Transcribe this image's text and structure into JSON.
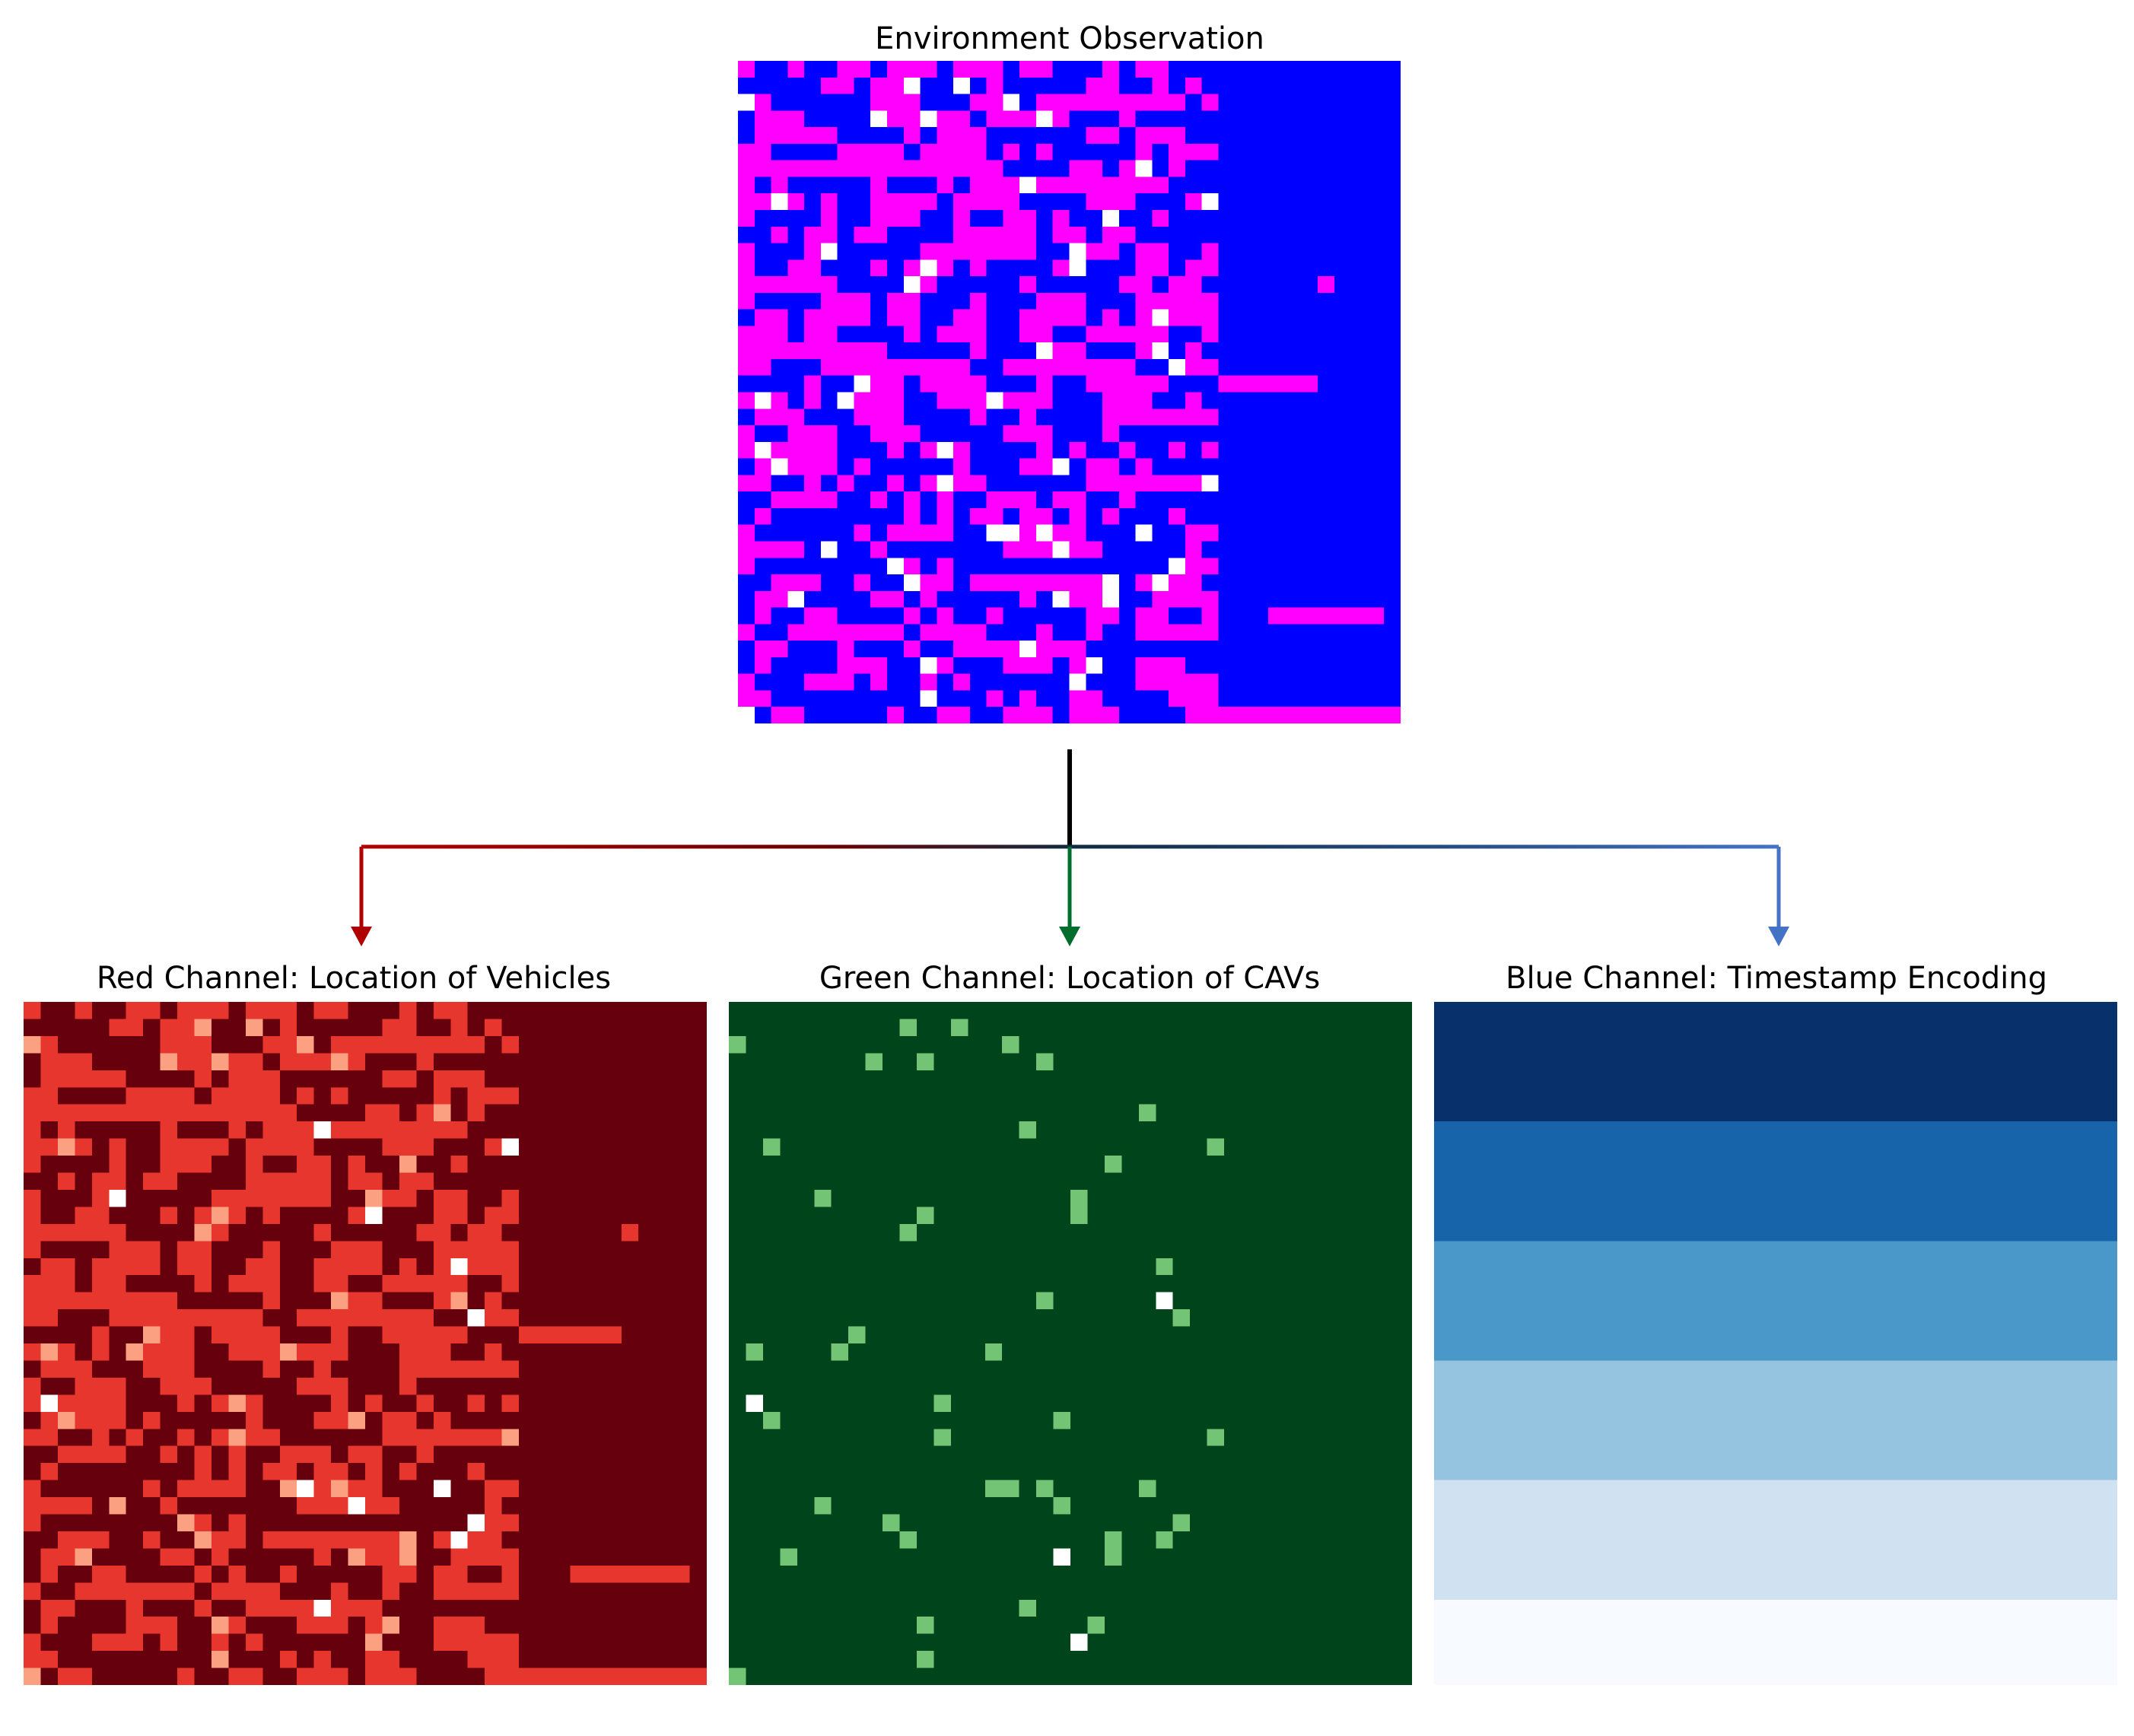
{
  "titles": {
    "environment": "Environment Observation",
    "red": "Red Channel: Location of Vehicles",
    "green": "Green Channel: Location of CAVs",
    "blue": "Blue Channel: Timestamp Encoding"
  },
  "colors": {
    "env_vehicle": "#ff00ff",
    "env_empty": "#0000ff",
    "env_cav": "#ffffff",
    "red_levels": [
      "#67000d",
      "#e7362e",
      "#fca082",
      "#ffffff"
    ],
    "green_levels": [
      "#00441b",
      "#74c476",
      "#ffffff"
    ],
    "blue_levels": [
      "#08306b",
      "#1764ab",
      "#4a98c9",
      "#94c4df",
      "#d0e1f2",
      "#f7fbff"
    ],
    "connector_trunk": "#000000",
    "arrow_red": "#b00000",
    "arrow_green": "#006d2c",
    "arrow_blue": "#4472c4"
  },
  "grid": {
    "size": 40,
    "lanes_region_cols": 29,
    "blue_band_count": 6,
    "blue_band_rows": 7
  }
}
